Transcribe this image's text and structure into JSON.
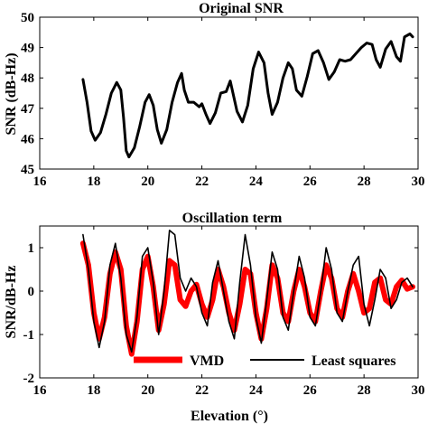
{
  "chart_data": [
    {
      "type": "line",
      "title": "Original SNR",
      "xlabel": "",
      "ylabel": "SNR (dB-Hz)",
      "xlim": [
        16,
        30
      ],
      "ylim": [
        45,
        50
      ],
      "xticks": [
        "16",
        "18",
        "20",
        "22",
        "24",
        "26",
        "28",
        "30"
      ],
      "yticks": [
        "45",
        "46",
        "47",
        "48",
        "49",
        "50"
      ],
      "grid": false,
      "series": [
        {
          "color": "#000000",
          "points": [
            [
              17.6,
              47.95
            ],
            [
              17.75,
              47.2
            ],
            [
              17.9,
              46.25
            ],
            [
              18.05,
              45.95
            ],
            [
              18.25,
              46.2
            ],
            [
              18.45,
              46.8
            ],
            [
              18.65,
              47.5
            ],
            [
              18.85,
              47.85
            ],
            [
              19.0,
              47.6
            ],
            [
              19.1,
              46.7
            ],
            [
              19.2,
              45.6
            ],
            [
              19.3,
              45.4
            ],
            [
              19.5,
              45.7
            ],
            [
              19.7,
              46.4
            ],
            [
              19.9,
              47.2
            ],
            [
              20.05,
              47.45
            ],
            [
              20.2,
              47.1
            ],
            [
              20.35,
              46.3
            ],
            [
              20.5,
              45.85
            ],
            [
              20.7,
              46.3
            ],
            [
              20.9,
              47.2
            ],
            [
              21.1,
              47.85
            ],
            [
              21.25,
              48.15
            ],
            [
              21.35,
              47.6
            ],
            [
              21.5,
              47.2
            ],
            [
              21.7,
              47.2
            ],
            [
              21.9,
              47.05
            ],
            [
              22.0,
              47.15
            ],
            [
              22.15,
              46.8
            ],
            [
              22.3,
              46.5
            ],
            [
              22.5,
              46.85
            ],
            [
              22.7,
              47.5
            ],
            [
              22.9,
              47.55
            ],
            [
              23.05,
              47.9
            ],
            [
              23.15,
              47.5
            ],
            [
              23.3,
              46.9
            ],
            [
              23.5,
              46.55
            ],
            [
              23.7,
              47.1
            ],
            [
              23.9,
              48.3
            ],
            [
              24.1,
              48.85
            ],
            [
              24.3,
              48.5
            ],
            [
              24.45,
              47.5
            ],
            [
              24.6,
              46.8
            ],
            [
              24.8,
              47.2
            ],
            [
              25.0,
              48.0
            ],
            [
              25.2,
              48.5
            ],
            [
              25.35,
              48.3
            ],
            [
              25.5,
              47.6
            ],
            [
              25.7,
              47.4
            ],
            [
              25.9,
              48.05
            ],
            [
              26.1,
              48.8
            ],
            [
              26.3,
              48.9
            ],
            [
              26.5,
              48.5
            ],
            [
              26.7,
              47.95
            ],
            [
              26.9,
              48.2
            ],
            [
              27.1,
              48.6
            ],
            [
              27.3,
              48.55
            ],
            [
              27.5,
              48.6
            ],
            [
              27.7,
              48.8
            ],
            [
              27.9,
              49.0
            ],
            [
              28.1,
              49.15
            ],
            [
              28.3,
              49.1
            ],
            [
              28.45,
              48.6
            ],
            [
              28.6,
              48.35
            ],
            [
              28.8,
              48.95
            ],
            [
              29.0,
              49.2
            ],
            [
              29.2,
              48.7
            ],
            [
              29.35,
              48.55
            ],
            [
              29.5,
              49.35
            ],
            [
              29.7,
              49.45
            ],
            [
              29.8,
              49.35
            ]
          ]
        }
      ]
    },
    {
      "type": "line",
      "title": "Oscillation term",
      "xlabel": "Elevation (°)",
      "ylabel": "SNR/dB-Hz",
      "xlim": [
        16,
        30
      ],
      "ylim": [
        -2,
        1.5
      ],
      "xticks": [
        "16",
        "18",
        "20",
        "22",
        "24",
        "26",
        "28",
        "30"
      ],
      "yticks": [
        "-2",
        "-1",
        "0",
        "1"
      ],
      "grid": false,
      "legend": {
        "placement": "bottom-right"
      },
      "series": [
        {
          "name": "VMD",
          "color": "#ff0000",
          "points": [
            [
              17.6,
              1.1
            ],
            [
              17.8,
              0.6
            ],
            [
              18.0,
              -0.5
            ],
            [
              18.2,
              -1.1
            ],
            [
              18.4,
              -0.6
            ],
            [
              18.6,
              0.4
            ],
            [
              18.8,
              0.9
            ],
            [
              19.0,
              0.5
            ],
            [
              19.2,
              -0.8
            ],
            [
              19.4,
              -1.45
            ],
            [
              19.6,
              -0.7
            ],
            [
              19.8,
              0.5
            ],
            [
              20.0,
              0.8
            ],
            [
              20.2,
              0.1
            ],
            [
              20.4,
              -0.9
            ],
            [
              20.6,
              -0.3
            ],
            [
              20.8,
              0.7
            ],
            [
              21.0,
              0.6
            ],
            [
              21.2,
              -0.2
            ],
            [
              21.4,
              -0.35
            ],
            [
              21.6,
              0.0
            ],
            [
              21.8,
              0.15
            ],
            [
              22.0,
              -0.3
            ],
            [
              22.2,
              -0.6
            ],
            [
              22.4,
              -0.2
            ],
            [
              22.6,
              0.5
            ],
            [
              22.8,
              0.1
            ],
            [
              23.0,
              -0.5
            ],
            [
              23.2,
              -0.9
            ],
            [
              23.4,
              -0.3
            ],
            [
              23.6,
              0.5
            ],
            [
              23.8,
              0.4
            ],
            [
              24.0,
              -0.5
            ],
            [
              24.2,
              -1.1
            ],
            [
              24.4,
              -0.4
            ],
            [
              24.6,
              0.6
            ],
            [
              24.8,
              0.3
            ],
            [
              25.0,
              -0.5
            ],
            [
              25.2,
              -0.7
            ],
            [
              25.4,
              0.0
            ],
            [
              25.6,
              0.5
            ],
            [
              25.8,
              0.1
            ],
            [
              26.0,
              -0.5
            ],
            [
              26.2,
              -0.7
            ],
            [
              26.4,
              0.0
            ],
            [
              26.6,
              0.6
            ],
            [
              26.8,
              0.3
            ],
            [
              27.0,
              -0.4
            ],
            [
              27.2,
              -0.6
            ],
            [
              27.4,
              0.0
            ],
            [
              27.6,
              0.4
            ],
            [
              27.8,
              0.0
            ],
            [
              28.0,
              -0.5
            ],
            [
              28.2,
              -0.4
            ],
            [
              28.4,
              0.2
            ],
            [
              28.6,
              0.3
            ],
            [
              28.8,
              -0.2
            ],
            [
              29.0,
              -0.3
            ],
            [
              29.2,
              0.1
            ],
            [
              29.4,
              0.25
            ],
            [
              29.6,
              0.05
            ],
            [
              29.8,
              0.1
            ]
          ]
        },
        {
          "name": "Least squares",
          "color": "#000000",
          "points": [
            [
              17.6,
              1.3
            ],
            [
              17.8,
              0.5
            ],
            [
              18.0,
              -0.7
            ],
            [
              18.2,
              -1.3
            ],
            [
              18.4,
              -0.7
            ],
            [
              18.6,
              0.6
            ],
            [
              18.8,
              1.1
            ],
            [
              19.0,
              0.3
            ],
            [
              19.2,
              -1.0
            ],
            [
              19.4,
              -1.4
            ],
            [
              19.6,
              -0.6
            ],
            [
              19.8,
              0.8
            ],
            [
              20.0,
              1.0
            ],
            [
              20.2,
              0.2
            ],
            [
              20.4,
              -1.0
            ],
            [
              20.6,
              0.0
            ],
            [
              20.8,
              1.4
            ],
            [
              21.0,
              1.3
            ],
            [
              21.2,
              0.3
            ],
            [
              21.4,
              0.0
            ],
            [
              21.6,
              0.3
            ],
            [
              21.8,
              0.1
            ],
            [
              22.0,
              -0.5
            ],
            [
              22.2,
              -0.8
            ],
            [
              22.4,
              0.2
            ],
            [
              22.6,
              0.7
            ],
            [
              22.8,
              0.0
            ],
            [
              23.0,
              -0.7
            ],
            [
              23.2,
              -1.1
            ],
            [
              23.4,
              0.2
            ],
            [
              23.6,
              1.3
            ],
            [
              23.8,
              0.6
            ],
            [
              24.0,
              -0.6
            ],
            [
              24.2,
              -1.2
            ],
            [
              24.4,
              -0.2
            ],
            [
              24.6,
              0.9
            ],
            [
              24.8,
              0.5
            ],
            [
              25.0,
              -0.6
            ],
            [
              25.2,
              -0.9
            ],
            [
              25.4,
              0.0
            ],
            [
              25.6,
              0.8
            ],
            [
              25.8,
              0.3
            ],
            [
              26.0,
              -0.6
            ],
            [
              26.2,
              -0.8
            ],
            [
              26.4,
              0.0
            ],
            [
              26.6,
              1.0
            ],
            [
              26.8,
              0.5
            ],
            [
              27.0,
              -0.5
            ],
            [
              27.2,
              -0.7
            ],
            [
              27.4,
              0.0
            ],
            [
              27.6,
              0.6
            ],
            [
              27.8,
              0.8
            ],
            [
              28.0,
              -0.3
            ],
            [
              28.2,
              -0.8
            ],
            [
              28.4,
              -0.2
            ],
            [
              28.6,
              0.5
            ],
            [
              28.8,
              0.3
            ],
            [
              29.0,
              -0.4
            ],
            [
              29.2,
              -0.2
            ],
            [
              29.4,
              0.2
            ],
            [
              29.6,
              0.3
            ],
            [
              29.8,
              0.1
            ]
          ]
        }
      ]
    }
  ]
}
